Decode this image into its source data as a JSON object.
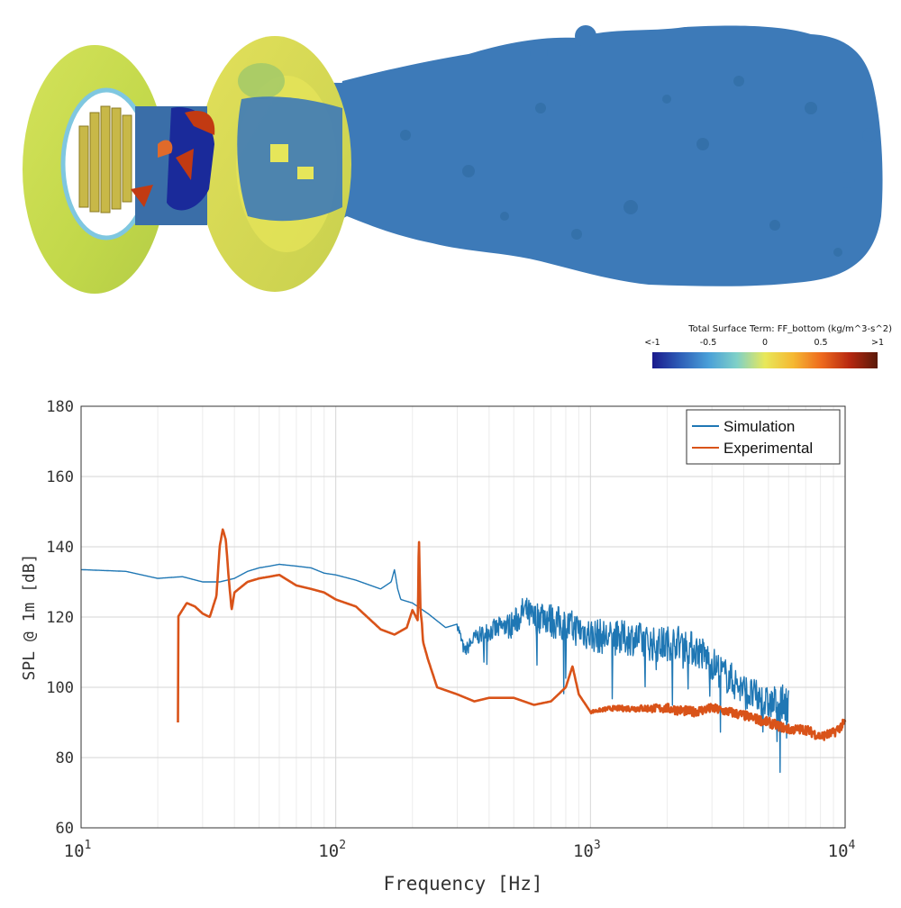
{
  "colorbar": {
    "title": "Total Surface Term: FF_bottom (kg/m^3-s^2)",
    "ticks": [
      "<-1",
      "-0.5",
      "0",
      "0.5",
      ">1"
    ],
    "stops": [
      "#1a1a8c",
      "#2e5fb8",
      "#4aa0d8",
      "#7fd0c8",
      "#e8e85a",
      "#f5b832",
      "#ee6a1e",
      "#b72810",
      "#5a1a0a"
    ]
  },
  "visualization": {
    "iso_color": "#3d7ab8",
    "disk_color": "#c8dc4a",
    "rotor_red": "#c23a12",
    "rotor_blue": "#1a2a9a"
  },
  "chart_data": {
    "type": "line",
    "xlabel": "Frequency [Hz]",
    "ylabel": "SPL @ 1m [dB]",
    "xscale": "log",
    "xlim": [
      10,
      10000
    ],
    "ylim": [
      60,
      180
    ],
    "yticks": [
      "60",
      "80",
      "100",
      "120",
      "140",
      "160",
      "180"
    ],
    "xticks": [
      {
        "base": "10",
        "exp": "1"
      },
      {
        "base": "10",
        "exp": "2"
      },
      {
        "base": "10",
        "exp": "3"
      },
      {
        "base": "10",
        "exp": "4"
      }
    ],
    "grid": true,
    "legend_position": "top-right",
    "series": [
      {
        "name": "Simulation",
        "color": "#1f77b4",
        "x": [
          10,
          15,
          20,
          25,
          30,
          35,
          40,
          45,
          50,
          55,
          60,
          70,
          80,
          90,
          100,
          120,
          150,
          165,
          170,
          175,
          180,
          200,
          230,
          270,
          300,
          320,
          350,
          400,
          450,
          500,
          550,
          600,
          650,
          700,
          800,
          900,
          1000,
          1200,
          1500,
          1800,
          2200,
          2700,
          3000,
          3300,
          3600,
          4000,
          4500,
          5000,
          5500,
          6000
        ],
        "y": [
          133.5,
          133,
          131,
          131.5,
          130,
          130,
          131,
          133,
          134,
          134.5,
          135,
          134.5,
          134,
          132.5,
          132,
          130.5,
          128,
          130,
          133.5,
          128,
          125,
          124,
          121,
          117,
          118,
          110,
          114,
          116,
          117,
          118,
          122,
          119,
          121,
          119,
          117.5,
          116.5,
          115,
          114,
          114,
          112,
          113,
          110,
          107,
          104,
          102,
          99,
          97,
          95,
          96,
          95
        ],
        "noise_start": 300,
        "noise_amp": 5
      },
      {
        "name": "Experimental",
        "color": "#d95319",
        "x": [
          24,
          26,
          28,
          30,
          32,
          34,
          35,
          36,
          37,
          38,
          39,
          40,
          45,
          50,
          55,
          60,
          70,
          80,
          90,
          100,
          120,
          150,
          170,
          190,
          200,
          210,
          212,
          215,
          218,
          220,
          230,
          250,
          300,
          350,
          400,
          500,
          600,
          700,
          800,
          850,
          900,
          1000,
          1200,
          1500,
          2000,
          2500,
          3000,
          3500,
          4000,
          5000,
          6000,
          7000,
          8000,
          9000,
          10000
        ],
        "y": [
          120,
          124,
          123,
          121,
          120,
          126,
          140,
          145,
          142,
          131,
          122,
          127,
          130,
          131,
          131.5,
          132,
          129,
          128,
          127,
          125,
          123,
          116.5,
          115,
          117,
          122,
          119,
          144,
          122,
          118,
          113,
          108,
          100,
          98,
          96,
          97,
          97,
          95,
          96,
          100,
          106,
          98,
          93,
          94,
          94,
          94,
          93,
          94,
          93,
          92,
          90,
          88,
          88,
          86,
          87,
          90
        ],
        "noise_start": 1000,
        "noise_amp": 1.4
      }
    ]
  }
}
